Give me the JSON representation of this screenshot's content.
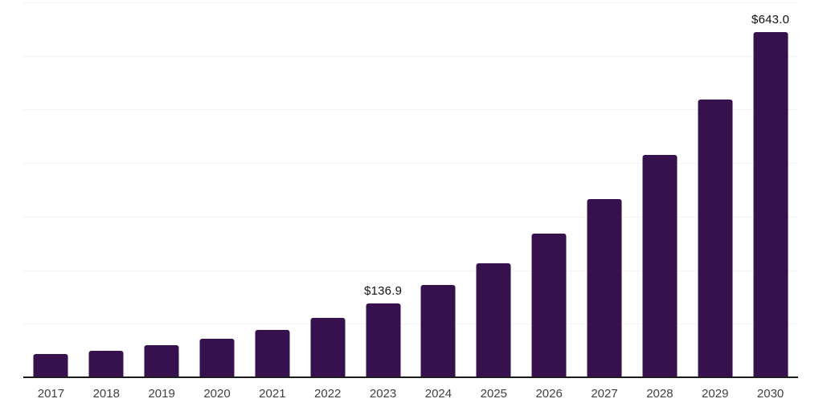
{
  "chart_data": {
    "type": "bar",
    "title": "",
    "xlabel": "",
    "ylabel": "",
    "categories": [
      "2017",
      "2018",
      "2019",
      "2020",
      "2021",
      "2022",
      "2023",
      "2024",
      "2025",
      "2026",
      "2027",
      "2028",
      "2029",
      "2030"
    ],
    "values": [
      41.6,
      48.5,
      58.8,
      70.3,
      87.0,
      109.5,
      136.9,
      171.5,
      211.0,
      267.0,
      331.0,
      413.5,
      516.5,
      643.0
    ],
    "point_labels": [
      "",
      "",
      "",
      "",
      "",
      "",
      "$136.9",
      "",
      "",
      "",
      "",
      "",
      "",
      "$643.0"
    ],
    "ylim": [
      0,
      700
    ],
    "gridline_step": 100,
    "grid": "horizontal-only",
    "legend": "none",
    "colors": {
      "bar": "#36114e",
      "axis_line": "#1c1c1c",
      "gridline": "#f2f2f2",
      "value_label": "#111111",
      "tick_label": "#404040",
      "background": "#ffffff"
    }
  }
}
